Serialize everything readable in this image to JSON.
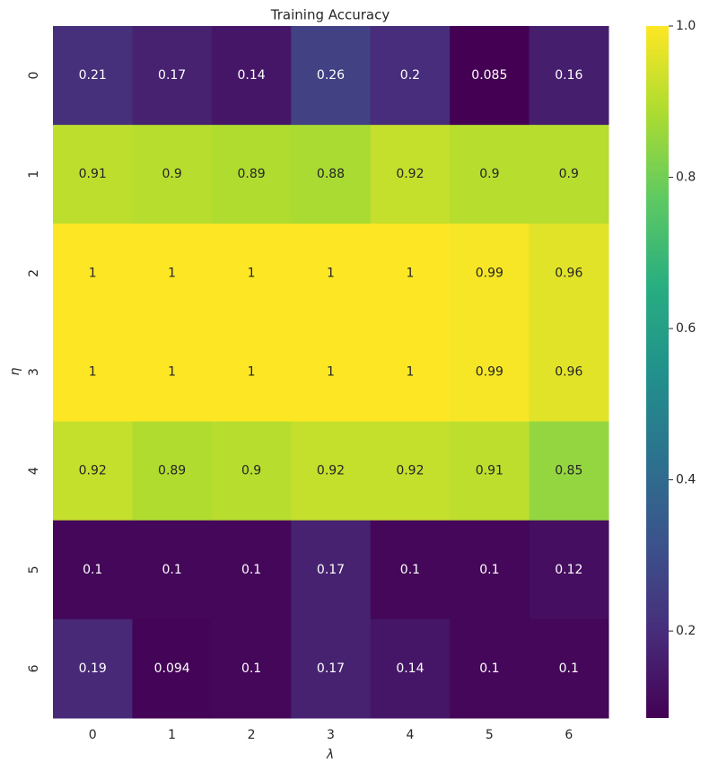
{
  "chart_data": {
    "type": "heatmap",
    "title": "Training Accuracy",
    "x_label": "λ",
    "y_label": "η",
    "x_categories": [
      "0",
      "1",
      "2",
      "3",
      "4",
      "5",
      "6"
    ],
    "y_categories": [
      "0",
      "1",
      "2",
      "3",
      "4",
      "5",
      "6"
    ],
    "values": [
      [
        0.21,
        0.17,
        0.14,
        0.26,
        0.2,
        0.085,
        0.16
      ],
      [
        0.91,
        0.9,
        0.89,
        0.88,
        0.92,
        0.9,
        0.9
      ],
      [
        1,
        1,
        1,
        1,
        1,
        0.99,
        0.96
      ],
      [
        1,
        1,
        1,
        1,
        1,
        0.99,
        0.96
      ],
      [
        0.92,
        0.89,
        0.9,
        0.92,
        0.92,
        0.91,
        0.85
      ],
      [
        0.1,
        0.1,
        0.1,
        0.17,
        0.1,
        0.1,
        0.12
      ],
      [
        0.19,
        0.094,
        0.1,
        0.17,
        0.14,
        0.1,
        0.1
      ]
    ],
    "colormap": "viridis",
    "colorscale": [
      "#440154",
      "#472d7b",
      "#3b528b",
      "#2c728e",
      "#21918c",
      "#28ae80",
      "#5ec962",
      "#addc30",
      "#fde725"
    ],
    "zlim": [
      0.085,
      1
    ],
    "zticks": [
      0.2,
      0.4,
      0.6,
      0.8,
      {
        "value": 1,
        "label": "1.0"
      }
    ]
  }
}
